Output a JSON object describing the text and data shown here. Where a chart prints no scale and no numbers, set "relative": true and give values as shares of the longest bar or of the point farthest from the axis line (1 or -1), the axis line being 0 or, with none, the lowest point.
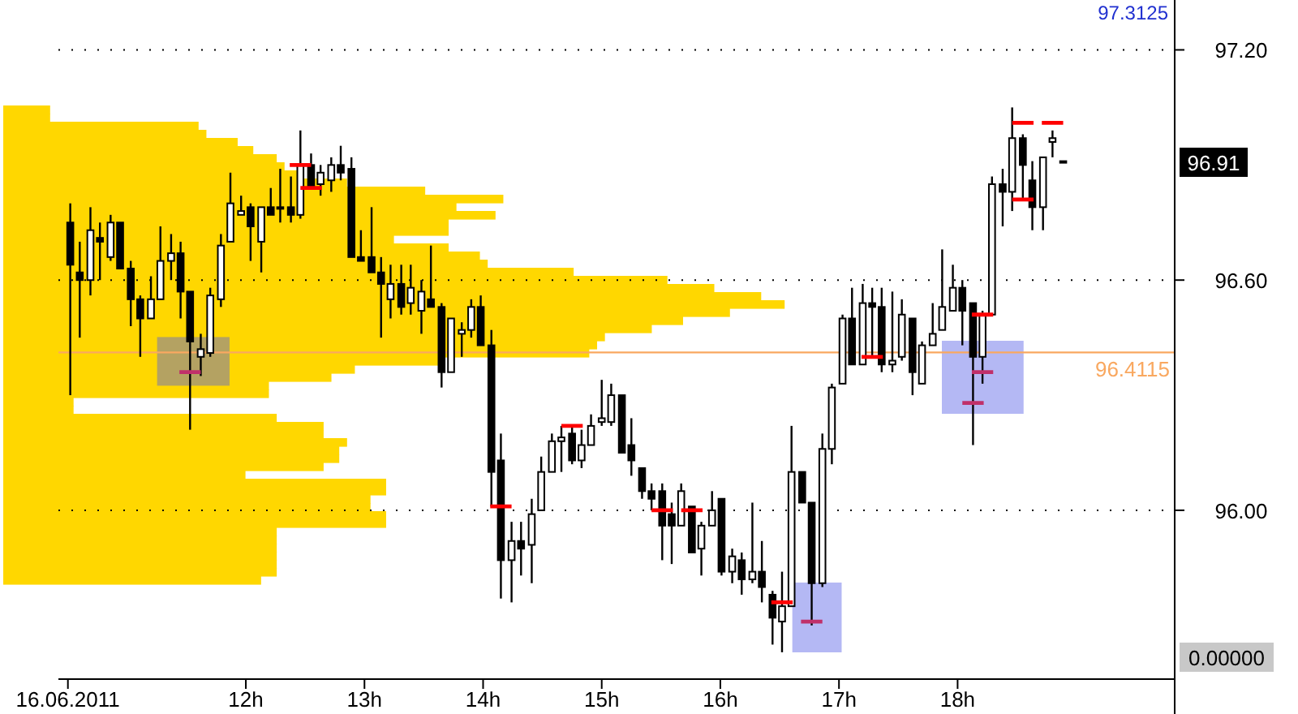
{
  "chart_data": [
    {
      "type": "candlestick",
      "xlim": [
        10.42,
        19.83
      ],
      "ylim": [
        95.56,
        97.33
      ],
      "xticks": [
        {
          "value": 10.5,
          "label": "16.06.2011"
        },
        {
          "value": 12,
          "label": "12h"
        },
        {
          "value": 13,
          "label": "13h"
        },
        {
          "value": 14,
          "label": "14h"
        },
        {
          "value": 15,
          "label": "15h"
        },
        {
          "value": 16,
          "label": "16h"
        },
        {
          "value": 17,
          "label": "17h"
        },
        {
          "value": 18,
          "label": "18h"
        }
      ],
      "yticks": [
        {
          "value": 96,
          "label": "96.00"
        },
        {
          "value": 96.6,
          "label": "96.60"
        },
        {
          "value": 97.2,
          "label": "97.20"
        }
      ],
      "grid": "y",
      "x": [
        10.52,
        10.6,
        10.69,
        10.77,
        10.86,
        10.94,
        11.03,
        11.11,
        11.2,
        11.28,
        11.37,
        11.45,
        11.53,
        11.62,
        11.7,
        11.79,
        11.87,
        11.96,
        12.04,
        12.13,
        12.21,
        12.29,
        12.38,
        12.46,
        12.55,
        12.63,
        12.72,
        12.8,
        12.89,
        12.97,
        13.06,
        13.14,
        13.22,
        13.31,
        13.39,
        13.48,
        13.56,
        13.65,
        13.73,
        13.82,
        13.9,
        13.98,
        14.07,
        14.15,
        14.24,
        14.32,
        14.41,
        14.49,
        14.58,
        14.66,
        14.75,
        14.83,
        14.91,
        15.0,
        15.08,
        15.17,
        15.25,
        15.34,
        15.42,
        15.51,
        15.59,
        15.67,
        15.76,
        15.84,
        15.93,
        16.01,
        16.1,
        16.18,
        16.27,
        16.35,
        16.44,
        16.52,
        16.6,
        16.69,
        16.77,
        16.86,
        16.94,
        17.03,
        17.11,
        17.2,
        17.28,
        17.36,
        17.45,
        17.53,
        17.62,
        17.7,
        17.79,
        17.87,
        17.96,
        18.04,
        18.13,
        18.21,
        18.29,
        18.38,
        18.46,
        18.55,
        18.63,
        18.72,
        18.8,
        18.89
      ],
      "ohlc": [
        [
          96.75,
          96.8,
          96.3,
          96.64
        ],
        [
          96.62,
          96.7,
          96.45,
          96.6
        ],
        [
          96.6,
          96.79,
          96.56,
          96.73
        ],
        [
          96.71,
          96.75,
          96.6,
          96.7
        ],
        [
          96.66,
          96.77,
          96.65,
          96.75
        ],
        [
          96.75,
          96.75,
          96.63,
          96.63
        ],
        [
          96.63,
          96.65,
          96.48,
          96.55
        ],
        [
          96.55,
          96.56,
          96.4,
          96.5
        ],
        [
          96.5,
          96.61,
          96.5,
          96.55
        ],
        [
          96.55,
          96.74,
          96.55,
          96.65
        ],
        [
          96.65,
          96.72,
          96.6,
          96.67
        ],
        [
          96.67,
          96.7,
          96.5,
          96.57
        ],
        [
          96.57,
          96.57,
          96.21,
          96.44
        ],
        [
          96.4,
          96.46,
          96.35,
          96.42
        ],
        [
          96.41,
          96.58,
          96.4,
          96.56
        ],
        [
          96.55,
          96.72,
          96.53,
          96.69
        ],
        [
          96.7,
          96.88,
          96.7,
          96.8
        ],
        [
          96.77,
          96.82,
          96.77,
          96.78
        ],
        [
          96.79,
          96.8,
          96.65,
          96.74
        ],
        [
          96.7,
          96.79,
          96.62,
          96.79
        ],
        [
          96.79,
          96.84,
          96.77,
          96.77
        ],
        [
          96.79,
          96.89,
          96.75,
          96.79
        ],
        [
          96.79,
          96.87,
          96.75,
          96.77
        ],
        [
          96.77,
          96.99,
          96.76,
          96.9
        ],
        [
          96.9,
          96.93,
          96.84,
          96.84
        ],
        [
          96.85,
          96.9,
          96.82,
          96.88
        ],
        [
          96.86,
          96.92,
          96.83,
          96.9
        ],
        [
          96.9,
          96.95,
          96.86,
          96.88
        ],
        [
          96.89,
          96.92,
          96.66,
          96.66
        ],
        [
          96.66,
          96.73,
          96.65,
          96.65
        ],
        [
          96.66,
          96.79,
          96.62,
          96.62
        ],
        [
          96.62,
          96.66,
          96.45,
          96.59
        ],
        [
          96.55,
          96.64,
          96.5,
          96.59
        ],
        [
          96.59,
          96.64,
          96.51,
          96.53
        ],
        [
          96.54,
          96.64,
          96.51,
          96.58
        ],
        [
          96.52,
          96.6,
          96.46,
          96.57
        ],
        [
          96.55,
          96.69,
          96.53,
          96.53
        ],
        [
          96.53,
          96.54,
          96.32,
          96.36
        ],
        [
          96.36,
          96.5,
          96.36,
          96.5
        ],
        [
          96.46,
          96.49,
          96.4,
          96.47
        ],
        [
          96.47,
          96.55,
          96.45,
          96.53
        ],
        [
          96.53,
          96.56,
          96.43,
          96.43
        ],
        [
          96.43,
          96.47,
          96.01,
          96.1
        ],
        [
          96.13,
          96.2,
          95.77,
          95.87
        ],
        [
          95.87,
          95.97,
          95.76,
          95.92
        ],
        [
          95.92,
          95.97,
          95.83,
          95.9
        ],
        [
          95.91,
          96.03,
          95.81,
          95.99
        ],
        [
          96.0,
          96.14,
          96.0,
          96.1
        ],
        [
          96.1,
          96.2,
          96.1,
          96.18
        ],
        [
          96.18,
          96.22,
          96.1,
          96.19
        ],
        [
          96.2,
          96.22,
          96.12,
          96.13
        ],
        [
          96.13,
          96.21,
          96.11,
          96.17
        ],
        [
          96.17,
          96.25,
          96.17,
          96.22
        ],
        [
          96.23,
          96.34,
          96.22,
          96.24
        ],
        [
          96.23,
          96.33,
          96.22,
          96.3
        ],
        [
          96.3,
          96.3,
          96.15,
          96.15
        ],
        [
          96.17,
          96.24,
          96.09,
          96.13
        ],
        [
          96.11,
          96.11,
          96.03,
          96.05
        ],
        [
          96.05,
          96.07,
          96.0,
          96.03
        ],
        [
          96.05,
          96.07,
          95.87,
          95.96
        ],
        [
          95.99,
          96.02,
          95.86,
          95.96
        ],
        [
          95.96,
          96.07,
          95.96,
          96.05
        ],
        [
          96.01,
          96.01,
          95.89,
          95.89
        ],
        [
          95.9,
          95.97,
          95.83,
          95.96
        ],
        [
          95.96,
          96.05,
          95.96,
          96.0
        ],
        [
          96.03,
          96.03,
          95.83,
          95.84
        ],
        [
          95.84,
          95.9,
          95.81,
          95.88
        ],
        [
          95.87,
          95.89,
          95.78,
          95.82
        ],
        [
          95.82,
          96.02,
          95.81,
          95.84
        ],
        [
          95.84,
          95.92,
          95.76,
          95.8
        ],
        [
          95.78,
          95.79,
          95.65,
          95.72
        ],
        [
          95.71,
          95.84,
          95.63,
          95.75
        ],
        [
          95.75,
          96.22,
          95.75,
          96.1
        ],
        [
          96.1,
          96.1,
          96.02,
          96.02
        ],
        [
          96.02,
          96.02,
          95.7,
          95.81
        ],
        [
          95.81,
          96.2,
          95.8,
          96.16
        ],
        [
          96.16,
          96.33,
          96.12,
          96.32
        ],
        [
          96.33,
          96.51,
          96.33,
          96.5
        ],
        [
          96.5,
          96.58,
          96.38,
          96.38
        ],
        [
          96.38,
          96.59,
          96.38,
          96.54
        ],
        [
          96.54,
          96.58,
          96.4,
          96.53
        ],
        [
          96.53,
          96.58,
          96.36,
          96.38
        ],
        [
          96.38,
          96.57,
          96.36,
          96.39
        ],
        [
          96.4,
          96.55,
          96.39,
          96.51
        ],
        [
          96.5,
          96.5,
          96.3,
          96.36
        ],
        [
          96.33,
          96.44,
          96.33,
          96.43
        ],
        [
          96.43,
          96.54,
          96.43,
          96.46
        ],
        [
          96.47,
          96.68,
          96.47,
          96.53
        ],
        [
          96.52,
          96.64,
          96.52,
          96.58
        ],
        [
          96.58,
          96.6,
          96.43,
          96.52
        ],
        [
          96.54,
          96.54,
          96.17,
          96.4
        ],
        [
          96.4,
          96.52,
          96.33,
          96.51
        ],
        [
          96.51,
          96.87,
          96.51,
          96.85
        ],
        [
          96.85,
          96.89,
          96.74,
          96.83
        ],
        [
          96.83,
          97.05,
          96.78,
          96.97
        ],
        [
          96.97,
          96.98,
          96.81,
          96.9
        ],
        [
          96.86,
          96.91,
          96.73,
          96.79
        ],
        [
          96.79,
          96.92,
          96.73,
          96.92
        ],
        [
          96.96,
          96.99,
          96.92,
          96.97
        ],
        [
          96.91,
          96.91,
          96.91,
          96.91
        ]
      ],
      "series": [
        {
          "type": "line",
          "color": "#ff0000",
          "x": [
            12.37,
            12.55,
            null,
            12.46,
            12.64,
            null,
            14.06,
            14.24,
            null,
            14.66,
            14.84,
            null,
            15.42,
            15.6,
            null,
            15.67,
            15.85,
            null,
            16.43,
            16.61,
            null,
            17.19,
            17.37,
            null,
            18.12,
            18.3,
            null,
            18.46,
            18.64,
            null,
            18.71,
            18.89
          ],
          "values": [
            96.9,
            96.9,
            null,
            96.84,
            96.84,
            null,
            96.01,
            96.01,
            null,
            96.22,
            96.22,
            null,
            96.0,
            96.0,
            null,
            96.0,
            96.0,
            null,
            95.76,
            95.76,
            null,
            96.4,
            96.4,
            null,
            96.51,
            96.51,
            null,
            97.01,
            97.01,
            null,
            97.01,
            97.01
          ]
        },
        {
          "type": "line",
          "color": "#ff0000",
          "x": [
            18.46,
            18.64
          ],
          "values": [
            96.81,
            96.81
          ]
        },
        {
          "type": "line",
          "color": "#c0306a",
          "x": [
            11.44,
            11.62,
            null,
            16.68,
            16.86,
            null,
            18.12,
            18.3,
            null,
            18.04,
            18.22
          ],
          "values": [
            96.36,
            96.36,
            null,
            95.71,
            95.71,
            null,
            96.36,
            96.36,
            null,
            96.28,
            96.28
          ]
        }
      ],
      "ref_lines": [
        {
          "axis": "y",
          "value": 96.4115,
          "label": "96.4115",
          "color": "#f9a860"
        }
      ],
      "annotations": [
        "97.3125",
        "0.00000",
        "96.91"
      ]
    },
    {
      "type": "bar",
      "orientation": "horizontal",
      "relative": true,
      "color": "#ffd700",
      "categories": [
        null,
        null,
        null,
        null,
        null,
        null,
        null,
        null,
        null,
        null,
        null,
        null,
        null,
        null,
        null,
        null,
        null,
        null,
        null,
        null,
        null,
        null,
        null,
        null,
        null,
        null,
        null,
        null,
        null,
        null,
        null,
        null,
        null,
        null,
        null,
        null,
        null,
        null,
        null,
        null,
        null,
        null,
        null,
        null,
        null,
        null,
        null,
        null,
        null,
        null,
        null,
        null,
        null,
        null,
        null,
        null,
        null,
        null,
        null
      ],
      "values": [
        0.06,
        0.06,
        0.25,
        0.26,
        0.3,
        0.32,
        0.35,
        0.36,
        0.38,
        0.44,
        0.54,
        0.64,
        0.58,
        0.63,
        0.57,
        0.57,
        0.5,
        0.57,
        0.61,
        0.62,
        0.73,
        0.85,
        0.91,
        0.97,
        1,
        0.93,
        0.87,
        0.83,
        0.77,
        0.76,
        0.75,
        0.56,
        0.45,
        0.42,
        0.34,
        0.34,
        0.09,
        0.09,
        0.35,
        0.41,
        0.41,
        0.44,
        0.43,
        0.43,
        0.41,
        0.31,
        0.49,
        0.49,
        0.47,
        0.47,
        0.49,
        0.49,
        0.35,
        0.35,
        0.35,
        0.35,
        0.35,
        0.35,
        0.33
      ]
    }
  ]
}
